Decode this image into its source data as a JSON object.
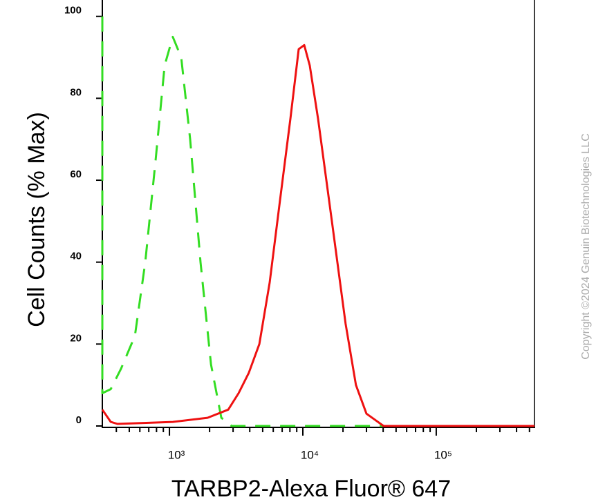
{
  "chart_data": {
    "type": "line",
    "xlabel": "TARBP2-Alexa Fluor® 647",
    "ylabel": "Cell Counts (% Max)",
    "watermark": "Copyright ©2024 Genuin Biotechnologies LLC",
    "xscale": "log",
    "xlim": [
      314,
      545000
    ],
    "ylim": [
      0,
      104
    ],
    "xticks": [
      {
        "value": 1000,
        "label": "10³"
      },
      {
        "value": 10000,
        "label": "10⁴"
      },
      {
        "value": 100000,
        "label": "10⁵"
      }
    ],
    "xminorticks": [
      400,
      500,
      600,
      700,
      800,
      900,
      2000,
      3000,
      4000,
      5000,
      6000,
      7000,
      8000,
      9000,
      20000,
      30000,
      40000,
      50000,
      60000,
      70000,
      80000,
      90000,
      200000,
      300000,
      400000,
      500000
    ],
    "yticks": [
      0,
      20,
      40,
      60,
      80,
      100
    ],
    "series": [
      {
        "color": "#33dd22",
        "dashed": true,
        "x": [
          314,
          314,
          363,
          434,
          551,
          659,
          788,
          920,
          1060,
          1225,
          1430,
          1710,
          2050,
          2450,
          2930,
          545000
        ],
        "values": [
          100,
          8,
          9,
          14,
          22,
          40,
          65,
          88,
          95,
          90,
          70,
          40,
          15,
          2,
          0,
          0
        ]
      },
      {
        "color": "#ee1111",
        "dashed": false,
        "x": [
          314,
          363,
          408,
          1060,
          1930,
          2760,
          3300,
          3940,
          4720,
          5640,
          6740,
          8070,
          9310,
          10240,
          11270,
          13000,
          16500,
          20900,
          25000,
          30000,
          40300,
          545000
        ],
        "values": [
          4,
          1,
          0.5,
          1,
          2,
          4,
          8,
          13,
          20,
          35,
          55,
          75,
          92,
          93,
          88,
          75,
          50,
          25,
          10,
          3,
          0,
          0
        ]
      }
    ]
  }
}
